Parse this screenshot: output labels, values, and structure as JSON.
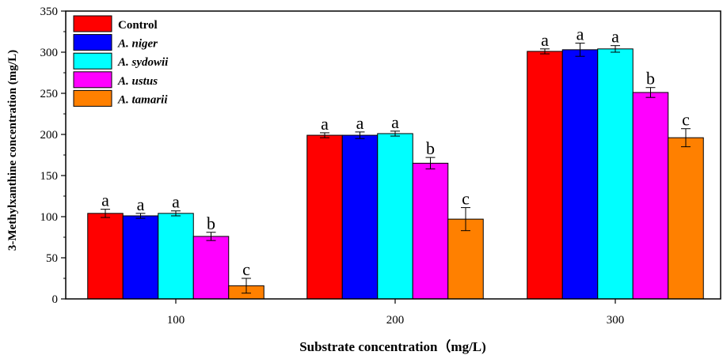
{
  "chart_data": {
    "type": "bar",
    "xlabel": "Substrate concentration（mg/L)",
    "ylabel": "3-Methylxanthine concentration (mg/L)",
    "ylim": [
      0,
      350
    ],
    "yticks": [
      0,
      50,
      100,
      150,
      200,
      250,
      300,
      350
    ],
    "categories": [
      "100",
      "200",
      "300"
    ],
    "legend_position": "top-left",
    "series": [
      {
        "name": "Control",
        "italic": false,
        "color": "#ff0000",
        "values": [
          104,
          199,
          301
        ],
        "errors": [
          5,
          3,
          3
        ],
        "labels": [
          "a",
          "a",
          "a"
        ]
      },
      {
        "name": "A. niger",
        "italic": true,
        "color": "#0000ff",
        "values": [
          101,
          199,
          303
        ],
        "errors": [
          3,
          4,
          8
        ],
        "labels": [
          "a",
          "a",
          "a"
        ]
      },
      {
        "name": "A. sydowii",
        "italic": true,
        "color": "#00ffff",
        "values": [
          104,
          201,
          304
        ],
        "errors": [
          3,
          3,
          4
        ],
        "labels": [
          "a",
          "a",
          "a"
        ]
      },
      {
        "name": "A. ustus",
        "italic": true,
        "color": "#ff00ff",
        "values": [
          76,
          165,
          251
        ],
        "errors": [
          5,
          7,
          6
        ],
        "labels": [
          "b",
          "b",
          "b"
        ]
      },
      {
        "name": "A. tamarii",
        "italic": true,
        "color": "#ff8000",
        "values": [
          16,
          97,
          196
        ],
        "errors": [
          9,
          14,
          11
        ],
        "labels": [
          "c",
          "c",
          "c"
        ]
      }
    ]
  }
}
